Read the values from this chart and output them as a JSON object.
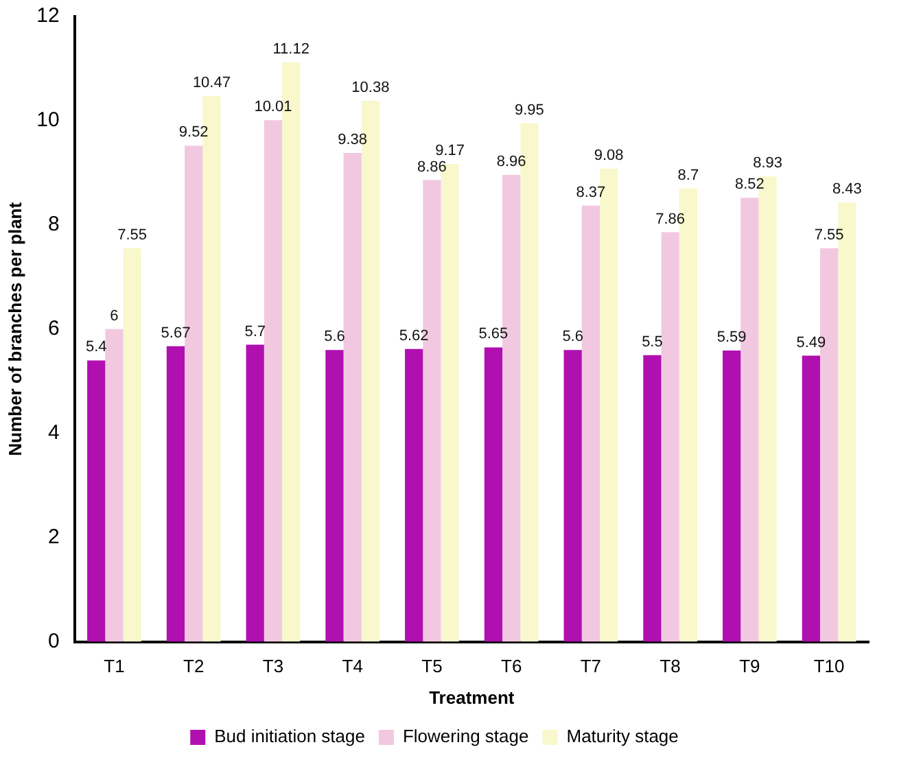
{
  "chart_data": {
    "type": "bar",
    "xlabel": "Treatment",
    "ylabel": "Number of branches per plant",
    "categories": [
      "T1",
      "T2",
      "T3",
      "T4",
      "T5",
      "T6",
      "T7",
      "T8",
      "T9",
      "T10"
    ],
    "series": [
      {
        "name": "Bud initiation stage",
        "color": "#b010b0",
        "values": [
          5.4,
          5.67,
          5.7,
          5.6,
          5.62,
          5.65,
          5.6,
          5.5,
          5.59,
          5.49
        ]
      },
      {
        "name": "Flowering stage",
        "color": "#f2c8e0",
        "values": [
          6,
          9.52,
          10.01,
          9.38,
          8.86,
          8.96,
          8.37,
          7.86,
          8.52,
          7.55
        ]
      },
      {
        "name": "Maturity stage",
        "color": "#f8f8cc",
        "values": [
          7.55,
          10.47,
          11.12,
          10.38,
          9.17,
          9.95,
          9.08,
          8.7,
          8.93,
          8.43
        ]
      }
    ],
    "ylim": [
      0,
      12
    ],
    "yticks": [
      0,
      2,
      4,
      6,
      8,
      10,
      12
    ],
    "grid": false,
    "legend": "bottom",
    "data_labels": true
  }
}
